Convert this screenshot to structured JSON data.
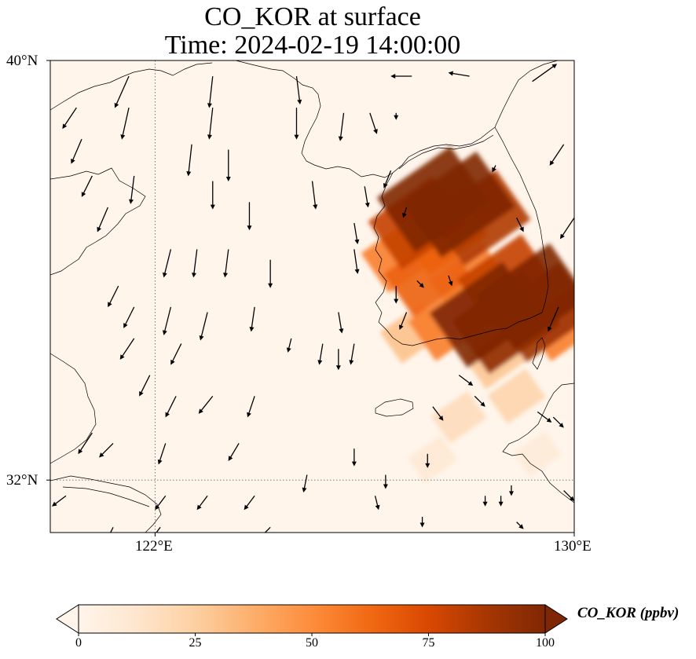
{
  "title": {
    "line1": "CO_KOR at surface",
    "line2": "Time: 2024-02-19 14:00:00"
  },
  "map": {
    "extent": {
      "lon_min": 120.0,
      "lon_max": 130.0,
      "lat_min": 31.0,
      "lat_max": 40.0
    },
    "gridlines": {
      "lon": [
        122
      ],
      "lat": [
        32
      ],
      "style": "dotted"
    },
    "lat_labels": [
      "40°N",
      "32°N"
    ],
    "lon_labels": [
      "122°E",
      "130°E"
    ],
    "background_color": "#fff5eb"
  },
  "field": {
    "variable": "CO_KOR",
    "units": "ppbv",
    "level": "surface",
    "blobs": [
      {
        "lon": 127.3,
        "lat": 37.35,
        "value": 100
      },
      {
        "lon": 127.8,
        "lat": 37.25,
        "value": 100
      },
      {
        "lon": 128.2,
        "lat": 37.0,
        "value": 85
      },
      {
        "lon": 127.0,
        "lat": 36.9,
        "value": 80
      },
      {
        "lon": 127.5,
        "lat": 36.7,
        "value": 65
      },
      {
        "lon": 126.7,
        "lat": 36.3,
        "value": 55
      },
      {
        "lon": 127.2,
        "lat": 35.9,
        "value": 65
      },
      {
        "lon": 128.0,
        "lat": 35.8,
        "value": 55
      },
      {
        "lon": 128.7,
        "lat": 35.8,
        "value": 80
      },
      {
        "lon": 129.2,
        "lat": 35.5,
        "value": 100
      },
      {
        "lon": 129.4,
        "lat": 35.2,
        "value": 90
      },
      {
        "lon": 128.3,
        "lat": 35.15,
        "value": 100
      },
      {
        "lon": 128.7,
        "lat": 35.0,
        "value": 95
      },
      {
        "lon": 127.6,
        "lat": 35.0,
        "value": 55
      },
      {
        "lon": 129.8,
        "lat": 35.0,
        "value": 55
      },
      {
        "lon": 126.9,
        "lat": 34.8,
        "value": 30
      },
      {
        "lon": 128.5,
        "lat": 34.3,
        "value": 28
      },
      {
        "lon": 128.9,
        "lat": 33.6,
        "value": 22
      },
      {
        "lon": 127.8,
        "lat": 33.2,
        "value": 18
      },
      {
        "lon": 127.3,
        "lat": 32.4,
        "value": 10
      },
      {
        "lon": 129.3,
        "lat": 32.5,
        "value": 8
      }
    ]
  },
  "wind_vectors": [
    {
      "lon": 121.5,
      "lat": 39.7,
      "u": -0.4,
      "v": -0.9
    },
    {
      "lon": 123.1,
      "lat": 39.7,
      "u": -0.1,
      "v": -0.9
    },
    {
      "lon": 124.7,
      "lat": 39.7,
      "u": 0.1,
      "v": -0.8
    },
    {
      "lon": 126.9,
      "lat": 39.7,
      "u": -0.6,
      "v": 0.0
    },
    {
      "lon": 128.0,
      "lat": 39.7,
      "u": -0.6,
      "v": 0.1
    },
    {
      "lon": 129.2,
      "lat": 39.6,
      "u": 0.7,
      "v": 0.5
    },
    {
      "lon": 120.5,
      "lat": 39.1,
      "u": -0.4,
      "v": -0.6
    },
    {
      "lon": 121.5,
      "lat": 39.1,
      "u": -0.2,
      "v": -0.9
    },
    {
      "lon": 123.1,
      "lat": 39.1,
      "u": -0.1,
      "v": -0.9
    },
    {
      "lon": 124.7,
      "lat": 39.1,
      "u": 0.0,
      "v": -0.9
    },
    {
      "lon": 125.6,
      "lat": 39.0,
      "u": -0.1,
      "v": -0.8
    },
    {
      "lon": 126.1,
      "lat": 39.0,
      "u": 0.2,
      "v": -0.6
    },
    {
      "lon": 126.6,
      "lat": 39.0,
      "u": 0.0,
      "v": -0.2
    },
    {
      "lon": 120.6,
      "lat": 38.5,
      "u": -0.3,
      "v": -0.7
    },
    {
      "lon": 122.7,
      "lat": 38.4,
      "u": -0.1,
      "v": -0.9
    },
    {
      "lon": 123.4,
      "lat": 38.3,
      "u": 0.0,
      "v": -0.9
    },
    {
      "lon": 129.8,
      "lat": 38.4,
      "u": -0.4,
      "v": -0.6
    },
    {
      "lon": 120.8,
      "lat": 37.8,
      "u": -0.3,
      "v": -0.6
    },
    {
      "lon": 121.6,
      "lat": 37.8,
      "u": -0.1,
      "v": -0.8
    },
    {
      "lon": 123.1,
      "lat": 37.7,
      "u": 0.0,
      "v": -0.8
    },
    {
      "lon": 125.0,
      "lat": 37.7,
      "u": 0.1,
      "v": -0.8
    },
    {
      "lon": 126.0,
      "lat": 37.6,
      "u": 0.1,
      "v": -0.6
    },
    {
      "lon": 126.5,
      "lat": 37.9,
      "u": -0.2,
      "v": -0.5
    },
    {
      "lon": 128.5,
      "lat": 38.0,
      "u": -0.1,
      "v": -0.2
    },
    {
      "lon": 121.1,
      "lat": 37.2,
      "u": -0.3,
      "v": -0.7
    },
    {
      "lon": 123.8,
      "lat": 37.3,
      "u": 0.0,
      "v": -0.8
    },
    {
      "lon": 126.8,
      "lat": 37.2,
      "u": -0.1,
      "v": -0.3
    },
    {
      "lon": 128.9,
      "lat": 37.0,
      "u": 0.2,
      "v": -0.4
    },
    {
      "lon": 130.0,
      "lat": 37.0,
      "u": -0.4,
      "v": -0.6
    },
    {
      "lon": 122.3,
      "lat": 36.4,
      "u": -0.2,
      "v": -0.8
    },
    {
      "lon": 122.8,
      "lat": 36.4,
      "u": -0.1,
      "v": -0.8
    },
    {
      "lon": 123.4,
      "lat": 36.4,
      "u": -0.1,
      "v": -0.8
    },
    {
      "lon": 124.2,
      "lat": 36.2,
      "u": 0.0,
      "v": -0.8
    },
    {
      "lon": 125.8,
      "lat": 36.4,
      "u": 0.1,
      "v": -0.7
    },
    {
      "lon": 125.8,
      "lat": 36.9,
      "u": 0.1,
      "v": -0.6
    },
    {
      "lon": 121.3,
      "lat": 35.7,
      "u": -0.3,
      "v": -0.6
    },
    {
      "lon": 121.6,
      "lat": 35.3,
      "u": -0.3,
      "v": -0.6
    },
    {
      "lon": 122.3,
      "lat": 35.3,
      "u": -0.2,
      "v": -0.8
    },
    {
      "lon": 123.0,
      "lat": 35.2,
      "u": -0.2,
      "v": -0.8
    },
    {
      "lon": 123.9,
      "lat": 35.3,
      "u": -0.1,
      "v": -0.7
    },
    {
      "lon": 125.5,
      "lat": 35.2,
      "u": 0.1,
      "v": -0.6
    },
    {
      "lon": 126.6,
      "lat": 35.7,
      "u": 0.0,
      "v": -0.5
    },
    {
      "lon": 126.8,
      "lat": 35.2,
      "u": -0.2,
      "v": -0.5
    },
    {
      "lon": 127.0,
      "lat": 35.8,
      "u": 0.2,
      "v": -0.2
    },
    {
      "lon": 127.6,
      "lat": 35.9,
      "u": 0.1,
      "v": -0.3
    },
    {
      "lon": 129.7,
      "lat": 35.3,
      "u": -0.3,
      "v": -0.7
    },
    {
      "lon": 121.6,
      "lat": 34.7,
      "u": -0.4,
      "v": -0.6
    },
    {
      "lon": 122.5,
      "lat": 34.6,
      "u": -0.3,
      "v": -0.6
    },
    {
      "lon": 125.2,
      "lat": 34.6,
      "u": -0.1,
      "v": -0.6
    },
    {
      "lon": 125.5,
      "lat": 34.5,
      "u": 0.0,
      "v": -0.6
    },
    {
      "lon": 125.8,
      "lat": 34.6,
      "u": -0.1,
      "v": -0.6
    },
    {
      "lon": 124.6,
      "lat": 34.7,
      "u": -0.1,
      "v": -0.4
    },
    {
      "lon": 127.8,
      "lat": 34.0,
      "u": 0.4,
      "v": -0.3
    },
    {
      "lon": 121.9,
      "lat": 34.0,
      "u": -0.3,
      "v": -0.6
    },
    {
      "lon": 122.4,
      "lat": 33.6,
      "u": -0.3,
      "v": -0.6
    },
    {
      "lon": 123.1,
      "lat": 33.6,
      "u": -0.4,
      "v": -0.5
    },
    {
      "lon": 123.9,
      "lat": 33.6,
      "u": -0.2,
      "v": -0.6
    },
    {
      "lon": 127.3,
      "lat": 33.4,
      "u": 0.3,
      "v": -0.4
    },
    {
      "lon": 128.1,
      "lat": 33.6,
      "u": 0.3,
      "v": -0.3
    },
    {
      "lon": 129.3,
      "lat": 33.3,
      "u": 0.4,
      "v": -0.3
    },
    {
      "lon": 129.6,
      "lat": 33.2,
      "u": 0.3,
      "v": -0.3
    },
    {
      "lon": 120.8,
      "lat": 32.9,
      "u": -0.4,
      "v": -0.6
    },
    {
      "lon": 121.2,
      "lat": 32.7,
      "u": -0.4,
      "v": -0.4
    },
    {
      "lon": 122.2,
      "lat": 32.7,
      "u": -0.2,
      "v": -0.6
    },
    {
      "lon": 123.6,
      "lat": 32.7,
      "u": -0.3,
      "v": -0.5
    },
    {
      "lon": 125.8,
      "lat": 32.6,
      "u": 0.0,
      "v": -0.5
    },
    {
      "lon": 127.2,
      "lat": 32.5,
      "u": 0.0,
      "v": -0.4
    },
    {
      "lon": 120.3,
      "lat": 31.7,
      "u": -0.4,
      "v": -0.3
    },
    {
      "lon": 122.2,
      "lat": 31.7,
      "u": -0.3,
      "v": -0.4
    },
    {
      "lon": 123.0,
      "lat": 31.7,
      "u": -0.3,
      "v": -0.4
    },
    {
      "lon": 123.9,
      "lat": 31.7,
      "u": -0.3,
      "v": -0.4
    },
    {
      "lon": 124.9,
      "lat": 32.1,
      "u": -0.1,
      "v": -0.5
    },
    {
      "lon": 126.2,
      "lat": 31.7,
      "u": 0.1,
      "v": -0.4
    },
    {
      "lon": 126.4,
      "lat": 32.1,
      "u": 0.0,
      "v": -0.4
    },
    {
      "lon": 128.3,
      "lat": 31.7,
      "u": 0.0,
      "v": -0.3
    },
    {
      "lon": 128.6,
      "lat": 31.7,
      "u": 0.0,
      "v": -0.3
    },
    {
      "lon": 128.8,
      "lat": 31.9,
      "u": 0.0,
      "v": -0.3
    },
    {
      "lon": 129.8,
      "lat": 31.8,
      "u": 0.3,
      "v": -0.3
    },
    {
      "lon": 127.1,
      "lat": 31.3,
      "u": 0.0,
      "v": -0.3
    },
    {
      "lon": 128.9,
      "lat": 31.2,
      "u": 0.2,
      "v": -0.2
    },
    {
      "lon": 121.2,
      "lat": 31.1,
      "u": -0.2,
      "v": -0.4
    },
    {
      "lon": 122.1,
      "lat": 31.1,
      "u": -0.3,
      "v": -0.4
    },
    {
      "lon": 124.2,
      "lat": 31.1,
      "u": -0.3,
      "v": -0.3
    }
  ],
  "colorbar": {
    "label": "CO_KOR (ppbv)",
    "ticks": [
      "0",
      "25",
      "50",
      "75",
      "100"
    ],
    "min": 0,
    "max": 100,
    "extend": "both",
    "cmap_stops": [
      "#fff5eb",
      "#fee6ce",
      "#fdd0a2",
      "#fdae6b",
      "#fd8d3c",
      "#f16913",
      "#d94801",
      "#a63603",
      "#7f2704"
    ]
  },
  "colors": {
    "coastline": "#000000",
    "gridline": "#666666",
    "arrow": "#000000"
  }
}
